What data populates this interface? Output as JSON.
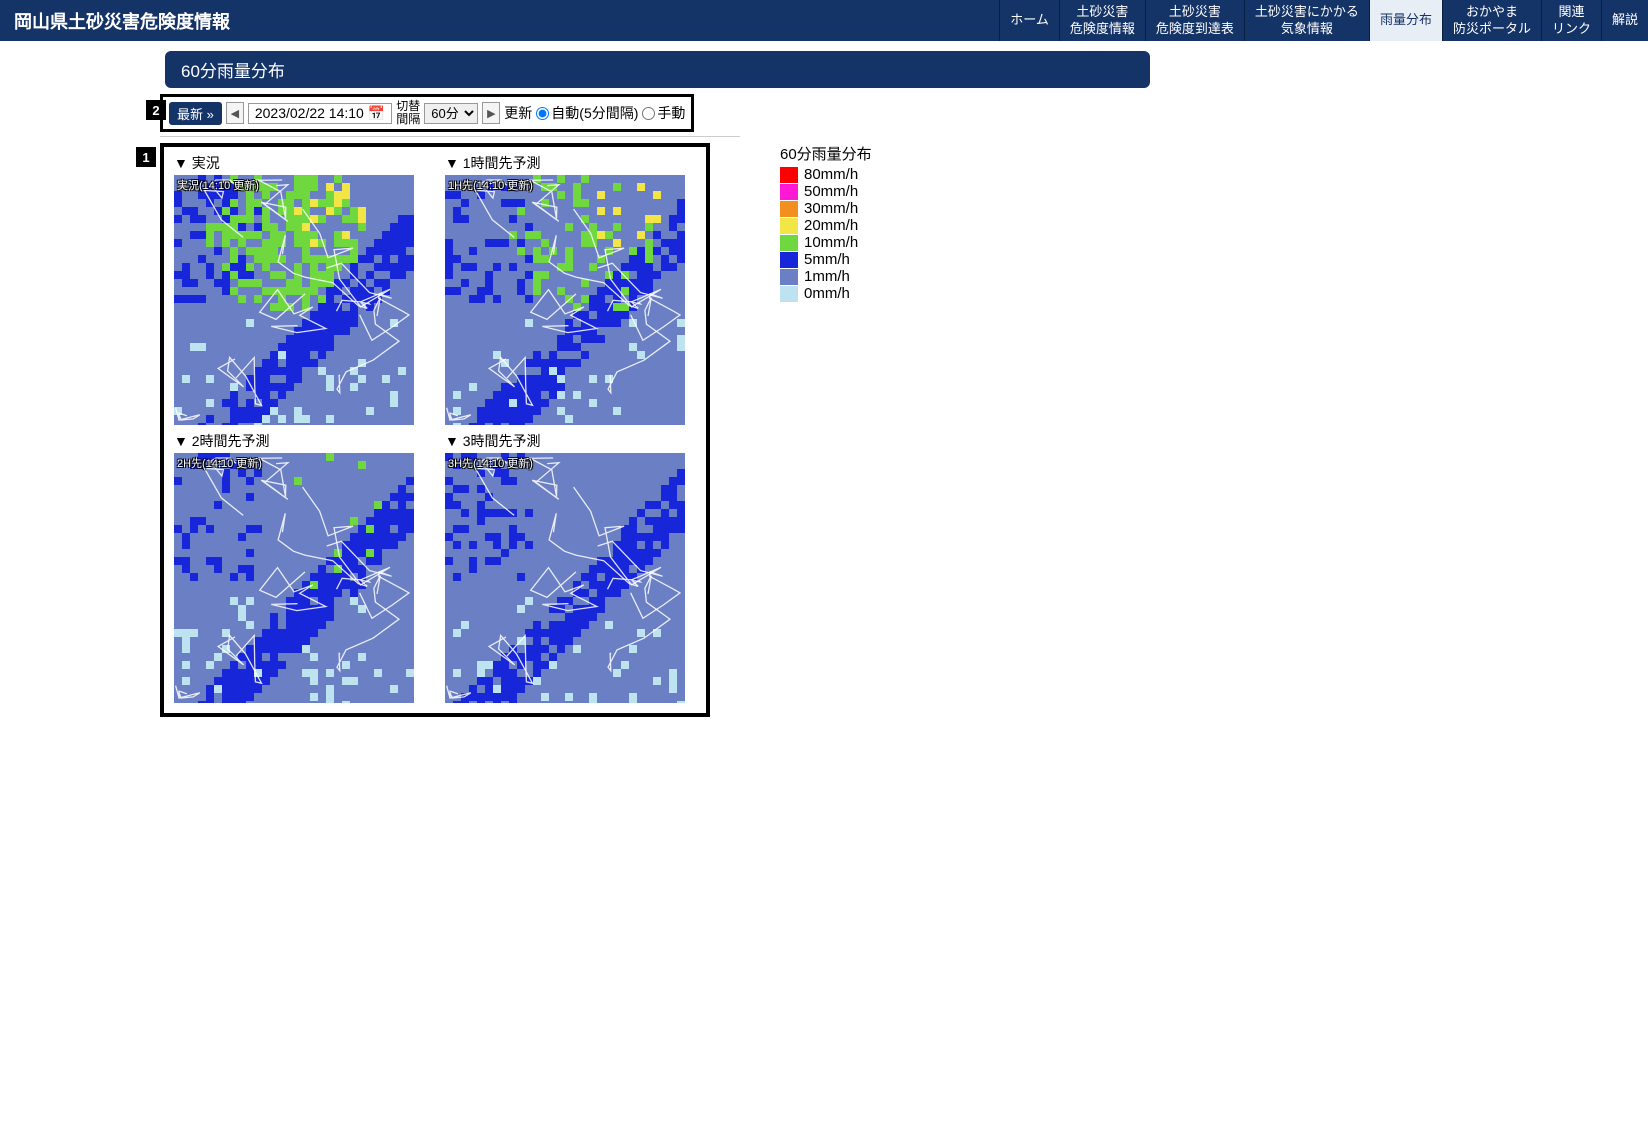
{
  "header": {
    "title": "岡山県土砂災害危険度情報",
    "nav": [
      {
        "label1": "ホーム",
        "label2": ""
      },
      {
        "label1": "土砂災害",
        "label2": "危険度情報"
      },
      {
        "label1": "土砂災害",
        "label2": "危険度到達表"
      },
      {
        "label1": "土砂災害にかかる",
        "label2": "気象情報"
      },
      {
        "label1": "雨量分布",
        "label2": "",
        "active": true
      },
      {
        "label1": "おかやま",
        "label2": "防災ポータル"
      },
      {
        "label1": "関連",
        "label2": "リンク"
      },
      {
        "label1": "解説",
        "label2": ""
      }
    ]
  },
  "subheader": "60分雨量分布",
  "callouts": {
    "one": "1",
    "two": "2"
  },
  "controls": {
    "latest": "最新 »",
    "prev": "◀",
    "next": "▶",
    "datetime": "2023/02/22 14:10",
    "interval_label_1": "切替",
    "interval_label_2": "間隔",
    "interval_value": "60分",
    "update_label": "更新",
    "auto_label": "自動(5分間隔)",
    "manual_label": "手動",
    "update_mode": "auto"
  },
  "maps": [
    {
      "title": "▼ 実況",
      "caption": "実況(14:10 更新)"
    },
    {
      "title": "▼ 1時間先予測",
      "caption": "1H先(14:10 更新)"
    },
    {
      "title": "▼ 2時間先予測",
      "caption": "2H先(14:10 更新)"
    },
    {
      "title": "▼ 3時間先予測",
      "caption": "3H先(14:10 更新)"
    }
  ],
  "map_style": {
    "base_color": "#6a7fc4",
    "boundary_color": "#ffffff",
    "rain_colors": {
      "0": "#bde2f0",
      "1": "#6a7fc4",
      "5": "#1726d9",
      "10": "#6fd83f",
      "20": "#f2e647",
      "30": "#f28f1e",
      "50": "#ff19d4",
      "80": "#ff0000"
    },
    "panels": [
      {
        "green_coverage": 0.35,
        "yellow_coverage": 0.08,
        "darkblue_coverage": 0.25,
        "light_coverage": 0.05
      },
      {
        "green_coverage": 0.15,
        "yellow_coverage": 0.05,
        "darkblue_coverage": 0.25,
        "light_coverage": 0.05
      },
      {
        "green_coverage": 0.03,
        "yellow_coverage": 0.0,
        "darkblue_coverage": 0.18,
        "light_coverage": 0.1
      },
      {
        "green_coverage": 0.0,
        "yellow_coverage": 0.0,
        "darkblue_coverage": 0.22,
        "light_coverage": 0.06
      }
    ]
  },
  "legend": {
    "title": "60分雨量分布",
    "items": [
      {
        "label": "80mm/h",
        "color": "#ff0000"
      },
      {
        "label": "50mm/h",
        "color": "#ff19d4"
      },
      {
        "label": "30mm/h",
        "color": "#f28f1e"
      },
      {
        "label": "20mm/h",
        "color": "#f2e647"
      },
      {
        "label": "10mm/h",
        "color": "#6fd83f"
      },
      {
        "label": "5mm/h",
        "color": "#1726d9"
      },
      {
        "label": "1mm/h",
        "color": "#6a7fc4"
      },
      {
        "label": "0mm/h",
        "color": "#bde2f0"
      }
    ]
  }
}
